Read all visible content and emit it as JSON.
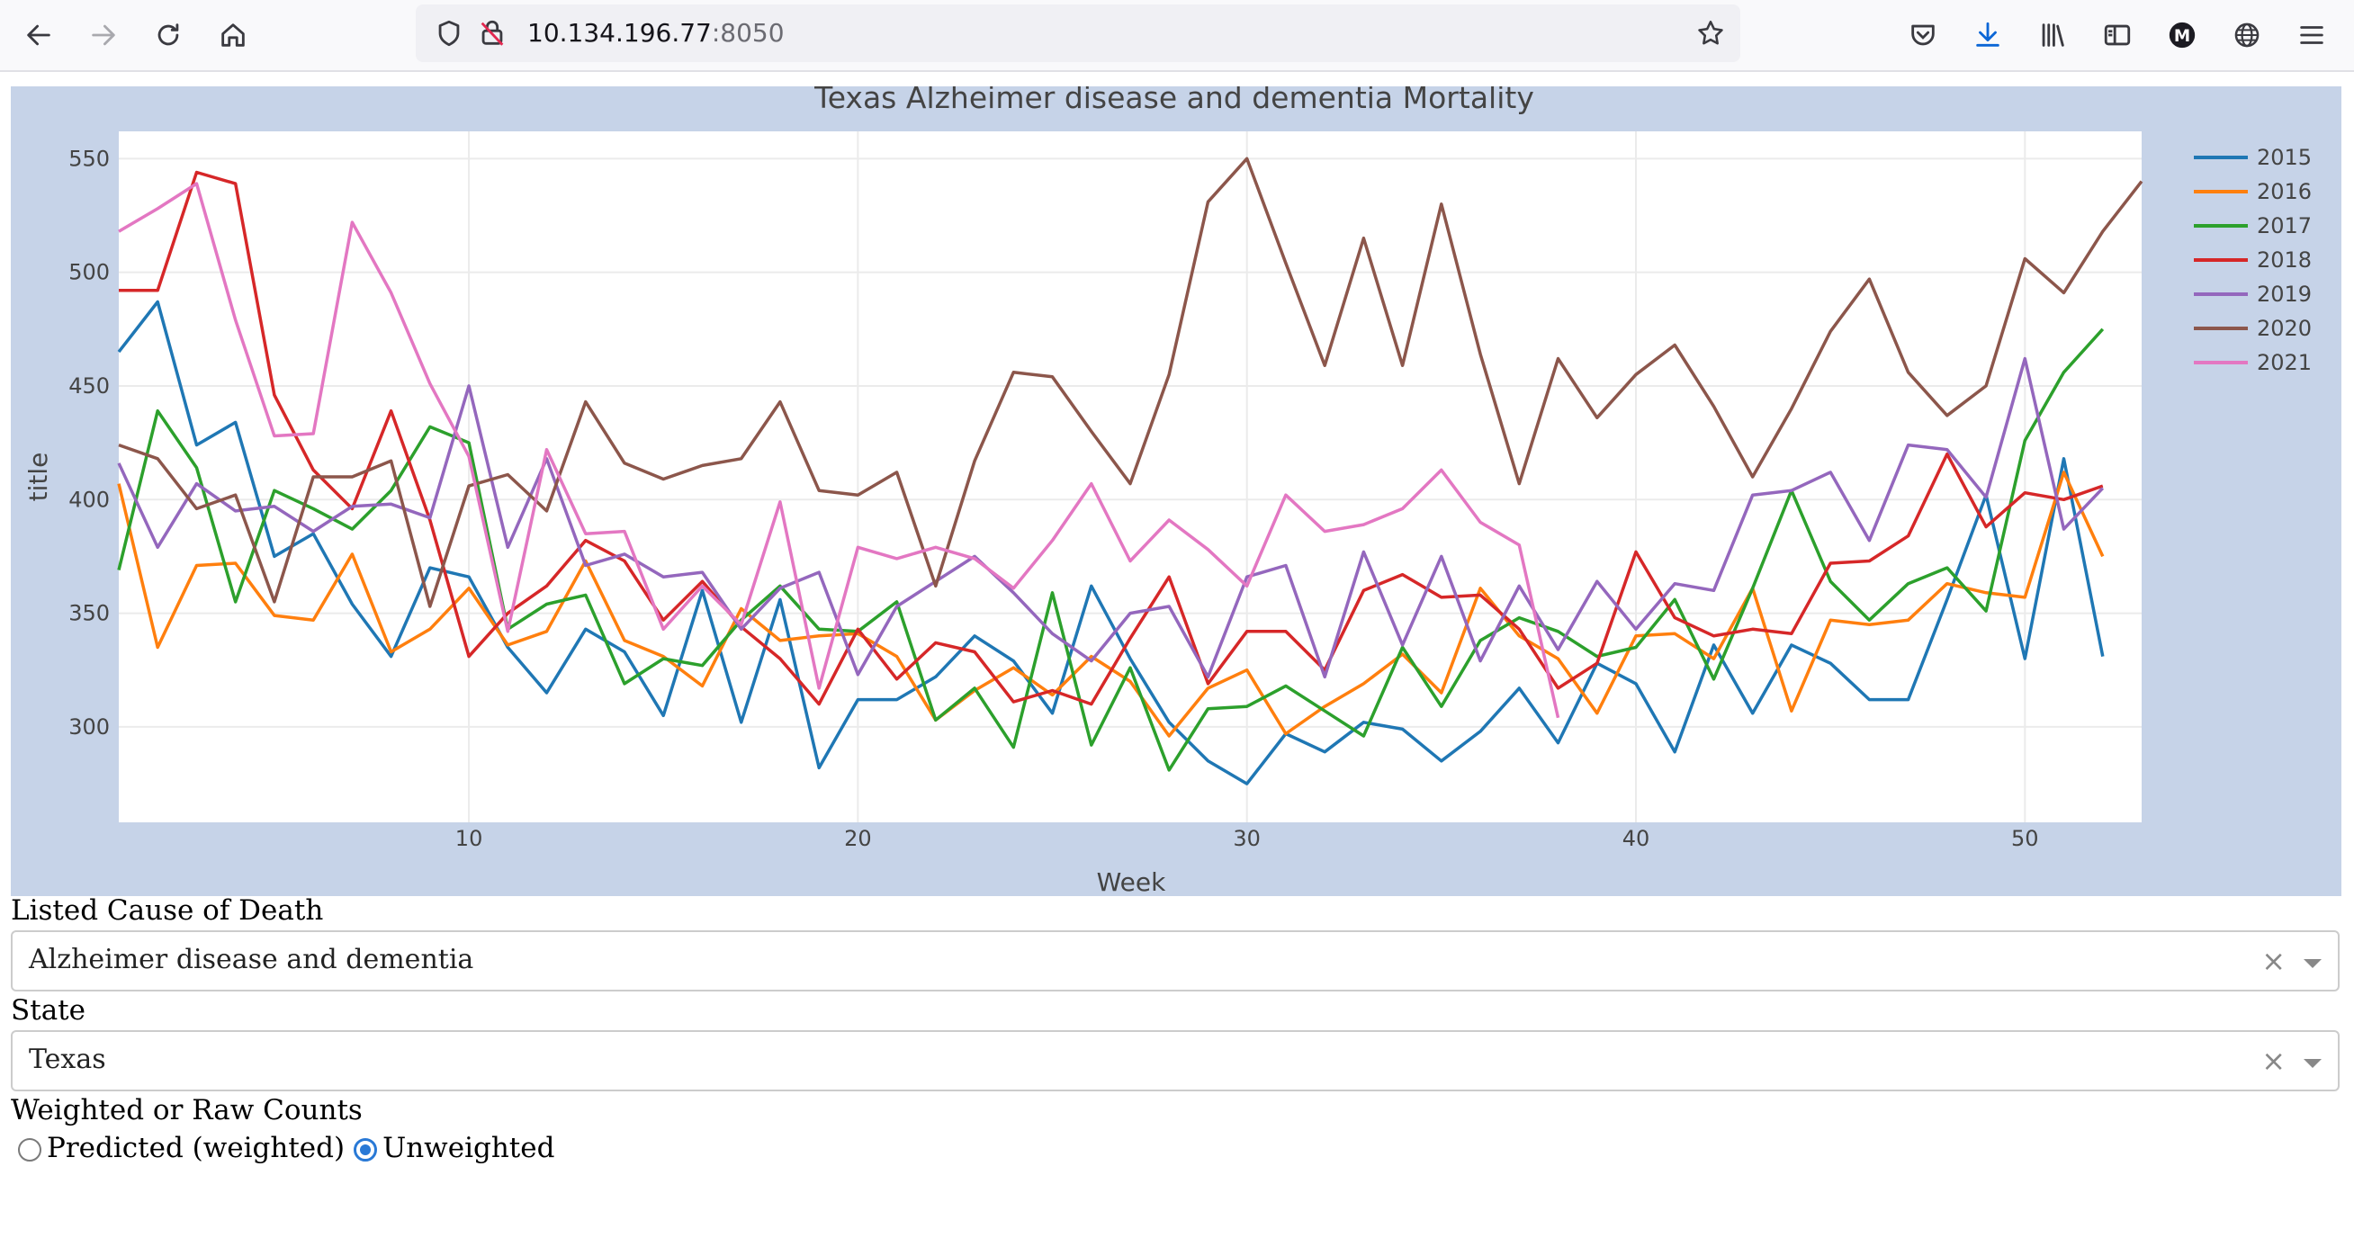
{
  "browser": {
    "url_host": "10.134.196.77",
    "url_port": ":8050",
    "icons": [
      "back-arrow-icon",
      "forward-arrow-icon",
      "reload-icon",
      "home-icon",
      "shield-icon",
      "insecure-lock-icon",
      "bookmark-star-icon",
      "pocket-icon",
      "downloads-icon",
      "library-icon",
      "sidebar-icon",
      "account-icon",
      "extensions-globe-icon",
      "menu-icon"
    ]
  },
  "chart_data": {
    "type": "line",
    "title": "Texas Alzheimer disease and dementia Mortality",
    "xlabel": "Week",
    "ylabel": "title",
    "xlim": [
      1,
      53
    ],
    "ylim": [
      258,
      562
    ],
    "xticks": [
      10,
      20,
      30,
      40,
      50
    ],
    "yticks": [
      300,
      350,
      400,
      450,
      500,
      550
    ],
    "grid": true,
    "legend_position": "top-right",
    "series": [
      {
        "name": "2015",
        "color": "#1f77b4",
        "x_start": 1,
        "values": [
          465,
          487,
          424,
          434,
          375,
          385,
          354,
          331,
          370,
          366,
          335,
          315,
          343,
          333,
          305,
          360,
          302,
          356,
          282,
          312,
          312,
          322,
          340,
          329,
          306,
          362,
          330,
          302,
          285,
          275,
          297,
          289,
          302,
          299,
          285,
          298,
          317,
          293,
          328,
          319,
          289,
          336,
          306,
          336,
          328,
          312,
          312,
          356,
          402,
          330,
          418,
          331
        ]
      },
      {
        "name": "2016",
        "color": "#ff7f0e",
        "x_start": 1,
        "values": [
          407,
          335,
          371,
          372,
          349,
          347,
          376,
          333,
          343,
          361,
          336,
          342,
          373,
          338,
          331,
          318,
          352,
          338,
          340,
          341,
          331,
          303,
          316,
          326,
          314,
          331,
          320,
          296,
          317,
          325,
          297,
          309,
          319,
          332,
          315,
          361,
          340,
          330,
          306,
          340,
          341,
          330,
          361,
          307,
          347,
          345,
          347,
          363,
          359,
          357,
          412,
          375
        ]
      },
      {
        "name": "2017",
        "color": "#2ca02c",
        "x_start": 1,
        "values": [
          369,
          439,
          414,
          355,
          404,
          396,
          387,
          404,
          432,
          425,
          343,
          354,
          358,
          319,
          330,
          327,
          347,
          362,
          343,
          342,
          355,
          303,
          317,
          291,
          359,
          292,
          326,
          281,
          308,
          309,
          318,
          307,
          296,
          335,
          309,
          338,
          348,
          342,
          331,
          335,
          356,
          321,
          361,
          404,
          364,
          347,
          363,
          370,
          351,
          426,
          456,
          475
        ]
      },
      {
        "name": "2018",
        "color": "#d62728",
        "x_start": 1,
        "values": [
          492,
          492,
          544,
          539,
          446,
          413,
          396,
          439,
          391,
          331,
          350,
          362,
          382,
          373,
          347,
          364,
          344,
          330,
          310,
          343,
          321,
          337,
          333,
          311,
          316,
          310,
          339,
          366,
          319,
          342,
          342,
          325,
          360,
          367,
          357,
          358,
          343,
          317,
          328,
          377,
          348,
          340,
          343,
          341,
          372,
          373,
          384,
          420,
          388,
          403,
          400,
          406
        ]
      },
      {
        "name": "2019",
        "color": "#9467bd",
        "x_start": 1,
        "values": [
          416,
          379,
          407,
          395,
          397,
          386,
          397,
          398,
          392,
          450,
          379,
          418,
          371,
          376,
          366,
          368,
          343,
          361,
          368,
          323,
          353,
          364,
          375,
          359,
          341,
          329,
          350,
          353,
          322,
          366,
          371,
          322,
          377,
          336,
          375,
          329,
          362,
          334,
          364,
          343,
          363,
          360,
          402,
          404,
          412,
          382,
          424,
          422,
          401,
          462,
          387,
          405
        ]
      },
      {
        "name": "2020",
        "color": "#8c564b",
        "x_start": 1,
        "values": [
          424,
          418,
          396,
          402,
          355,
          410,
          410,
          417,
          353,
          406,
          411,
          395,
          443,
          416,
          409,
          415,
          418,
          443,
          404,
          402,
          412,
          362,
          417,
          456,
          454,
          430,
          407,
          455,
          531,
          550,
          504,
          459,
          515,
          459,
          530,
          464,
          407,
          462,
          436,
          455,
          468,
          441,
          410,
          440,
          474,
          497,
          456,
          437,
          450,
          506,
          491,
          518,
          540
        ]
      },
      {
        "name": "2021",
        "color": "#e377c2",
        "x_start": 1,
        "values": [
          518,
          528,
          539,
          479,
          428,
          429,
          522,
          491,
          451,
          419,
          342,
          422,
          385,
          386,
          343,
          362,
          345,
          399,
          317,
          379,
          374,
          379,
          374,
          361,
          382,
          407,
          373,
          391,
          378,
          362,
          402,
          386,
          389,
          396,
          413,
          390,
          380,
          304
        ]
      }
    ]
  },
  "controls": {
    "cause_label": "Listed Cause of Death",
    "cause_value": "Alzheimer disease and dementia",
    "state_label": "State",
    "state_value": "Texas",
    "clear_glyph": "×",
    "weight_label": "Weighted or Raw Counts",
    "weight_options": [
      "Predicted (weighted)",
      "Unweighted"
    ],
    "weight_selected": "Unweighted"
  }
}
